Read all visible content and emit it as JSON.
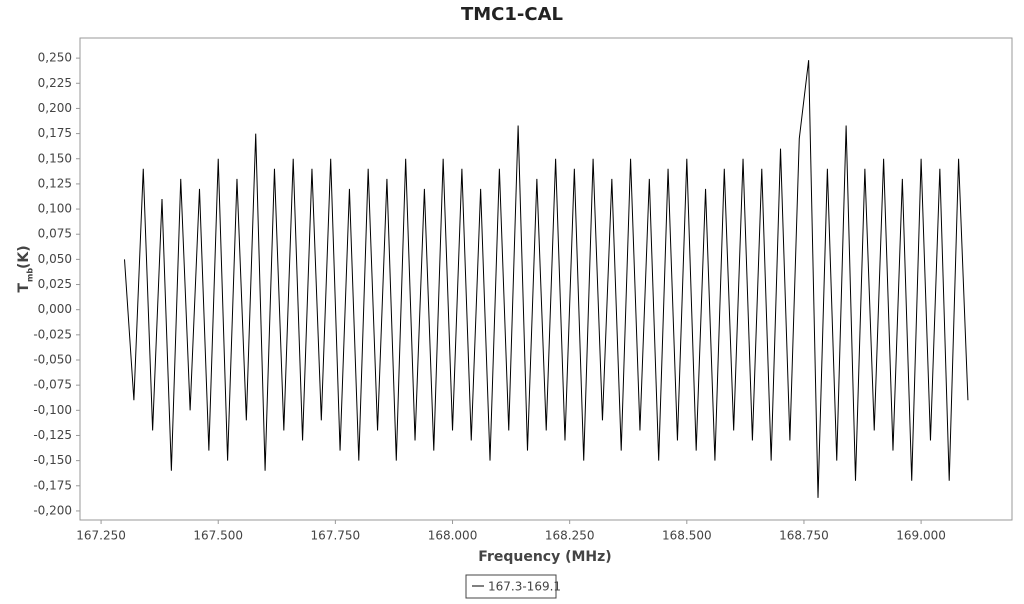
{
  "chart_data": {
    "type": "line",
    "title": "TMC1-CAL",
    "x_label": "Frequency (MHz)",
    "y_label": {
      "main": "T",
      "sub": "mb",
      "unit": "(K)"
    },
    "xlim": [
      167.205,
      169.194
    ],
    "ylim": [
      -0.209,
      0.27
    ],
    "xticks": [
      {
        "value": 167.25,
        "label": "167.250"
      },
      {
        "value": 167.5,
        "label": "167.500"
      },
      {
        "value": 167.75,
        "label": "167.750"
      },
      {
        "value": 168.0,
        "label": "168.000"
      },
      {
        "value": 168.25,
        "label": "168.250"
      },
      {
        "value": 168.5,
        "label": "168.500"
      },
      {
        "value": 168.75,
        "label": "168.750"
      },
      {
        "value": 169.0,
        "label": "169.000"
      }
    ],
    "yticks": [
      {
        "value": 0.25,
        "label": "0,250"
      },
      {
        "value": 0.225,
        "label": "0,225"
      },
      {
        "value": 0.2,
        "label": "0,200"
      },
      {
        "value": 0.175,
        "label": "0,175"
      },
      {
        "value": 0.15,
        "label": "0,150"
      },
      {
        "value": 0.125,
        "label": "0,125"
      },
      {
        "value": 0.1,
        "label": "0,100"
      },
      {
        "value": 0.075,
        "label": "0,075"
      },
      {
        "value": 0.05,
        "label": "0,050"
      },
      {
        "value": 0.025,
        "label": "0,025"
      },
      {
        "value": 0,
        "label": "0,000"
      },
      {
        "value": -0.025,
        "label": "-0,025"
      },
      {
        "value": -0.05,
        "label": "-0,050"
      },
      {
        "value": -0.075,
        "label": "-0,075"
      },
      {
        "value": -0.1,
        "label": "-0,100"
      },
      {
        "value": -0.125,
        "label": "-0,125"
      },
      {
        "value": -0.15,
        "label": "-0,150"
      },
      {
        "value": -0.175,
        "label": "-0,175"
      },
      {
        "value": -0.2,
        "label": "-0,200"
      }
    ],
    "grid": false,
    "x": [
      167.3,
      167.32,
      167.34,
      167.36,
      167.38,
      167.4,
      167.42,
      167.44,
      167.46,
      167.48,
      167.5,
      167.52,
      167.54,
      167.56,
      167.58,
      167.6,
      167.62,
      167.64,
      167.66,
      167.68,
      167.7,
      167.72,
      167.74,
      167.76,
      167.78,
      167.8,
      167.82,
      167.84,
      167.86,
      167.88,
      167.9,
      167.92,
      167.94,
      167.96,
      167.98,
      168.0,
      168.02,
      168.04,
      168.06,
      168.08,
      168.1,
      168.12,
      168.14,
      168.16,
      168.18,
      168.2,
      168.22,
      168.24,
      168.26,
      168.28,
      168.3,
      168.32,
      168.34,
      168.36,
      168.38,
      168.4,
      168.42,
      168.44,
      168.46,
      168.48,
      168.5,
      168.52,
      168.54,
      168.56,
      168.58,
      168.6,
      168.62,
      168.64,
      168.66,
      168.68,
      168.7,
      168.72,
      168.74,
      168.76,
      168.78,
      168.8,
      168.82,
      168.84,
      168.86,
      168.88,
      168.9,
      168.92,
      168.94,
      168.96,
      168.98,
      169.0,
      169.02,
      169.04,
      169.06,
      169.08,
      169.1
    ],
    "series": [
      {
        "name": "167.3-169.1",
        "color": "#000000",
        "values": [
          0.05,
          -0.09,
          0.14,
          -0.12,
          0.11,
          -0.16,
          0.13,
          -0.1,
          0.12,
          -0.14,
          0.15,
          -0.15,
          0.13,
          -0.11,
          0.175,
          -0.16,
          0.14,
          -0.12,
          0.15,
          -0.13,
          0.14,
          -0.11,
          0.15,
          -0.14,
          0.12,
          -0.15,
          0.14,
          -0.12,
          0.13,
          -0.15,
          0.15,
          -0.13,
          0.12,
          -0.14,
          0.15,
          -0.12,
          0.14,
          -0.13,
          0.12,
          -0.15,
          0.14,
          -0.12,
          0.183,
          -0.14,
          0.13,
          -0.12,
          0.15,
          -0.13,
          0.14,
          -0.15,
          0.15,
          -0.11,
          0.13,
          -0.14,
          0.15,
          -0.12,
          0.13,
          -0.15,
          0.14,
          -0.13,
          0.15,
          -0.14,
          0.12,
          -0.15,
          0.14,
          -0.12,
          0.15,
          -0.13,
          0.14,
          -0.15,
          0.16,
          -0.13,
          0.17,
          0.248,
          -0.187,
          0.14,
          -0.15,
          0.183,
          -0.17,
          0.14,
          -0.12,
          0.15,
          -0.14,
          0.13,
          -0.17,
          0.15,
          -0.13,
          0.14,
          -0.17,
          0.15,
          -0.09
        ]
      }
    ]
  }
}
